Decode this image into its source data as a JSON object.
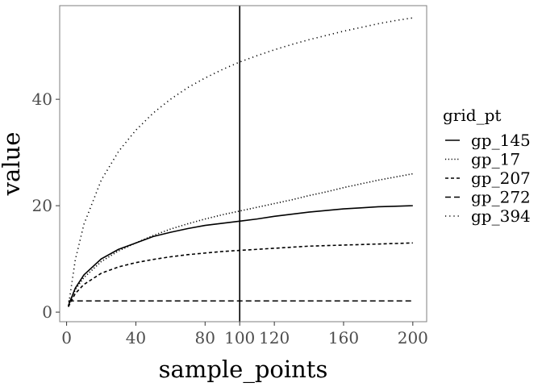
{
  "chart_data": {
    "type": "line",
    "title": "",
    "xlabel": "sample_points",
    "ylabel": "value",
    "xlim": [
      -4,
      208
    ],
    "ylim": [
      -1.8,
      57.6
    ],
    "grid": false,
    "legend": {
      "title": "grid_pt",
      "placement": "right"
    },
    "x_ticks": [
      {
        "value": 0,
        "label": "0"
      },
      {
        "value": 40,
        "label": "40"
      },
      {
        "value": 80,
        "label": "80"
      },
      {
        "value": 100,
        "label": "100"
      },
      {
        "value": 120,
        "label": "120"
      },
      {
        "value": 160,
        "label": "160"
      },
      {
        "value": 200,
        "label": "200"
      }
    ],
    "y_ticks": [
      {
        "value": 0,
        "label": "0"
      },
      {
        "value": 20,
        "label": "20"
      },
      {
        "value": 40,
        "label": "40"
      }
    ],
    "vline": {
      "x": 100
    },
    "x": [
      1,
      5,
      10,
      20,
      30,
      40,
      50,
      60,
      70,
      80,
      90,
      100,
      110,
      120,
      130,
      140,
      150,
      160,
      170,
      180,
      190,
      200
    ],
    "series": [
      {
        "name": "gp_145",
        "linetype": "solid",
        "values": [
          1.2,
          4.5,
          7.0,
          10.0,
          11.8,
          13.0,
          14.2,
          15.0,
          15.7,
          16.3,
          16.7,
          17.1,
          17.5,
          18.0,
          18.4,
          18.8,
          19.1,
          19.4,
          19.6,
          19.8,
          19.9,
          20.0
        ]
      },
      {
        "name": "gp_17",
        "linetype": "dotted-dense",
        "values": [
          1.2,
          4.2,
          6.5,
          9.5,
          11.5,
          13.0,
          14.4,
          15.6,
          16.6,
          17.5,
          18.3,
          19.0,
          19.7,
          20.4,
          21.1,
          21.9,
          22.6,
          23.4,
          24.1,
          24.8,
          25.4,
          26.0
        ]
      },
      {
        "name": "gp_207",
        "linetype": "dashed",
        "values": [
          1.0,
          3.5,
          5.2,
          7.3,
          8.5,
          9.3,
          9.9,
          10.4,
          10.8,
          11.1,
          11.4,
          11.6,
          11.8,
          12.0,
          12.2,
          12.4,
          12.5,
          12.6,
          12.7,
          12.8,
          12.9,
          13.0
        ]
      },
      {
        "name": "gp_272",
        "linetype": "long-dashed",
        "values": [
          2.1,
          2.1,
          2.1,
          2.1,
          2.1,
          2.1,
          2.1,
          2.1,
          2.1,
          2.1,
          2.1,
          2.1,
          2.1,
          2.1,
          2.1,
          2.1,
          2.1,
          2.1,
          2.1,
          2.1,
          2.1,
          2.1
        ]
      },
      {
        "name": "gp_394",
        "linetype": "dotted",
        "values": [
          1.0,
          9.8,
          16.5,
          24.8,
          30.2,
          34.2,
          37.4,
          40.0,
          42.2,
          44.0,
          45.6,
          47.0,
          48.2,
          49.3,
          50.3,
          51.2,
          52.0,
          52.8,
          53.5,
          54.2,
          54.8,
          55.3
        ]
      }
    ],
    "colors": {
      "line": "#000000",
      "panel_border": "#7f7f7f",
      "tick_label": "#4d4d4d"
    }
  }
}
